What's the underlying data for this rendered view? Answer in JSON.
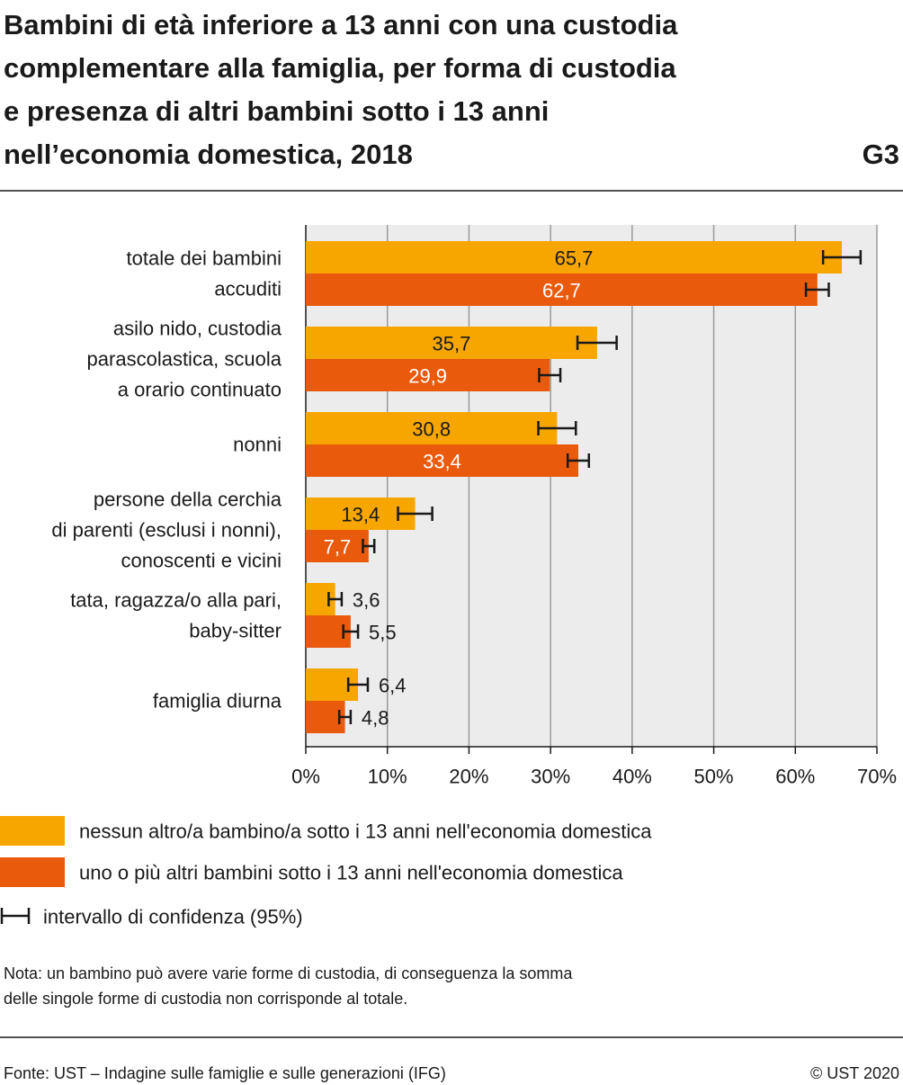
{
  "chart_data": {
    "type": "bar",
    "orientation": "horizontal",
    "title": [
      "Bambini di età inferiore a 13 anni con una custodia",
      "complementare alla famiglia, per forma di custodia",
      "e presenza di altri bambini sotto i 13 anni",
      "nell’economia domestica, 2018"
    ],
    "code": "G3",
    "categories": [
      [
        "totale dei bambini",
        "accuditi"
      ],
      [
        "asilo nido, custodia",
        "parascolastica, scuola",
        "a orario continuato"
      ],
      [
        "nonni"
      ],
      [
        "persone della cerchia",
        "di parenti (esclusi i nonni),",
        "conoscenti e vicini"
      ],
      [
        "tata, ragazza/o alla pari,",
        "baby-sitter"
      ],
      [
        "famiglia diurna"
      ]
    ],
    "series": [
      {
        "name": "nessun altro/a bambino/a sotto i 13 anni nell'economia domestica",
        "color": "#f7a600",
        "values": [
          65.7,
          35.7,
          30.8,
          13.4,
          3.6,
          6.4
        ],
        "value_labels": [
          "65,7",
          "35,7",
          "30,8",
          "13,4",
          "3,6",
          "6,4"
        ],
        "errors": [
          2.3,
          2.4,
          2.3,
          2.1,
          0.8,
          1.2
        ]
      },
      {
        "name": "uno o più altri bambini sotto i 13 anni nell'economia domestica",
        "color": "#e95a0c",
        "values": [
          62.7,
          29.9,
          33.4,
          7.7,
          5.5,
          4.8
        ],
        "value_labels": [
          "62,7",
          "29,9",
          "33,4",
          "7,7",
          "5,5",
          "4,8"
        ],
        "errors": [
          1.4,
          1.3,
          1.3,
          0.7,
          0.9,
          0.7
        ]
      }
    ],
    "error_label": "intervallo di confidenza (95%)",
    "xlim": [
      0,
      70
    ],
    "xticks": [
      {
        "value": 0,
        "label": "0%"
      },
      {
        "value": 10,
        "label": "10%"
      },
      {
        "value": 20,
        "label": "20%"
      },
      {
        "value": 30,
        "label": "30%"
      },
      {
        "value": 40,
        "label": "40%"
      },
      {
        "value": 50,
        "label": "50%"
      },
      {
        "value": 60,
        "label": "60%"
      },
      {
        "value": 70,
        "label": "70%"
      }
    ],
    "grid": true,
    "note": [
      "Nota: un bambino può avere varie forme di custodia, di conseguenza la somma",
      "delle singole forme di custodia non corrisponde al totale."
    ],
    "source": "Fonte: UST – Indagine sulle famiglie e sulle generazioni (IFG)",
    "copyright": "© UST 2020"
  }
}
